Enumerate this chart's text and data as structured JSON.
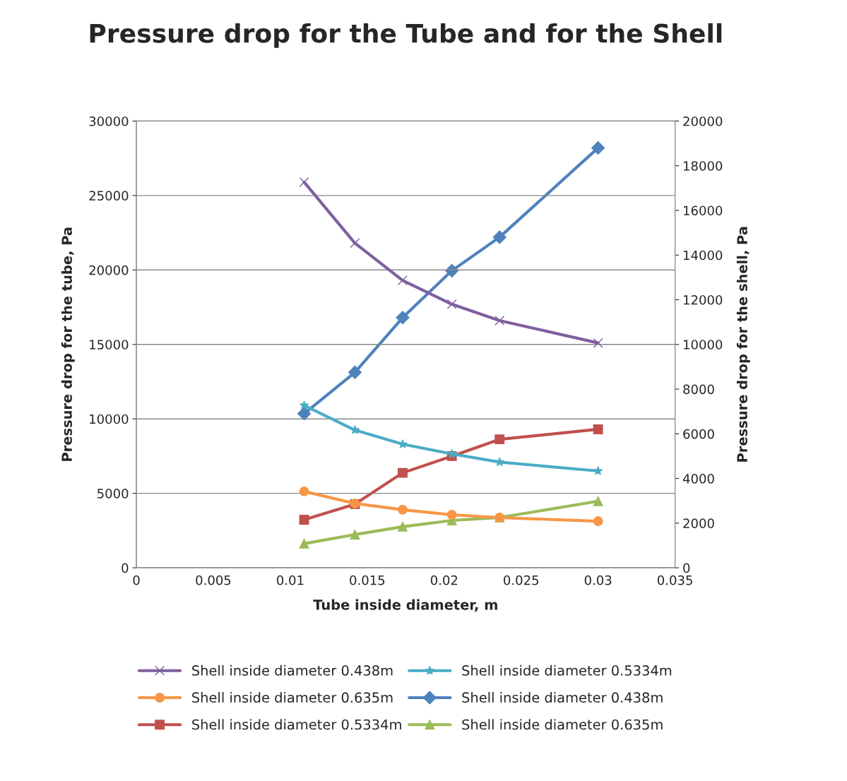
{
  "chart_data": {
    "type": "line",
    "title": "Pressure drop for the Tube and for the Shell",
    "xlabel": "Tube inside diameter, m",
    "ylabel": "Pressure drop for the tube, Pa",
    "y2label": "Pressure drop for the shell, Pa",
    "x": [
      0.0109,
      0.0142,
      0.0173,
      0.0205,
      0.0236,
      0.03
    ],
    "xlim": [
      0,
      0.035
    ],
    "xticks": [
      0,
      0.005,
      0.01,
      0.015,
      0.02,
      0.025,
      0.03,
      0.035
    ],
    "ylim": [
      0,
      30000
    ],
    "yticks": [
      0,
      5000,
      10000,
      15000,
      20000,
      25000,
      30000
    ],
    "y2lim": [
      0,
      20000
    ],
    "y2ticks": [
      0,
      2000,
      4000,
      6000,
      8000,
      10000,
      12000,
      14000,
      16000,
      18000,
      20000
    ],
    "grid": "y",
    "legend": "bottom",
    "line_style": "solid",
    "series": [
      {
        "name": "Shell inside diameter 0.438m",
        "color": "#7e5fa0",
        "marker": "cross",
        "values": [
          25900,
          21800,
          19300,
          17700,
          16600,
          15100
        ]
      },
      {
        "name": "Shell inside diameter 0.5334m",
        "color": "#4bacc6",
        "marker": "star",
        "values": [
          10900,
          9250,
          8300,
          7650,
          7100,
          6500
        ]
      },
      {
        "name": "Shell inside diameter 0.635m",
        "color": "#f79646",
        "marker": "circle",
        "values": [
          5130,
          4320,
          3900,
          3560,
          3370,
          3130
        ]
      },
      {
        "name": "Shell inside diameter 0.438m",
        "color": "#4f81bd",
        "marker": "diamond",
        "axis": "y2",
        "values": [
          6900,
          8750,
          11200,
          13300,
          14800,
          18800
        ]
      },
      {
        "name": "Shell inside diameter 0.5334m",
        "color": "#c0504d",
        "marker": "square",
        "axis": "y2",
        "values": [
          2150,
          2850,
          4250,
          5000,
          5750,
          6200
        ]
      },
      {
        "name": "Shell inside diameter 0.635m",
        "color": "#9bbb59",
        "marker": "triangle",
        "axis": "y2",
        "values": [
          1080,
          1490,
          1840,
          2120,
          2250,
          2980
        ]
      }
    ]
  }
}
